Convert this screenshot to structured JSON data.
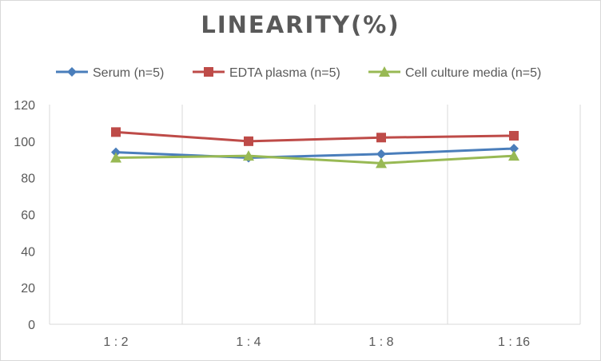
{
  "chart_data": {
    "type": "line",
    "title": "LINEARITY(%)",
    "xlabel": "",
    "ylabel": "",
    "categories": [
      "1 : 2",
      "1 : 4",
      "1 : 8",
      "1 : 16"
    ],
    "ylim": [
      0,
      120
    ],
    "yticks": [
      0,
      20,
      40,
      60,
      80,
      100,
      120
    ],
    "grid": "vertical",
    "legend_position": "top",
    "series": [
      {
        "name": "Serum (n=5)",
        "values": [
          94,
          91,
          93,
          96
        ],
        "color": "#4a7ebb",
        "marker": "diamond"
      },
      {
        "name": "EDTA plasma (n=5)",
        "values": [
          105,
          100,
          102,
          103
        ],
        "color": "#be4b48",
        "marker": "square"
      },
      {
        "name": "Cell culture media (n=5)",
        "values": [
          91,
          92,
          88,
          92
        ],
        "color": "#98b954",
        "marker": "triangle"
      }
    ]
  }
}
